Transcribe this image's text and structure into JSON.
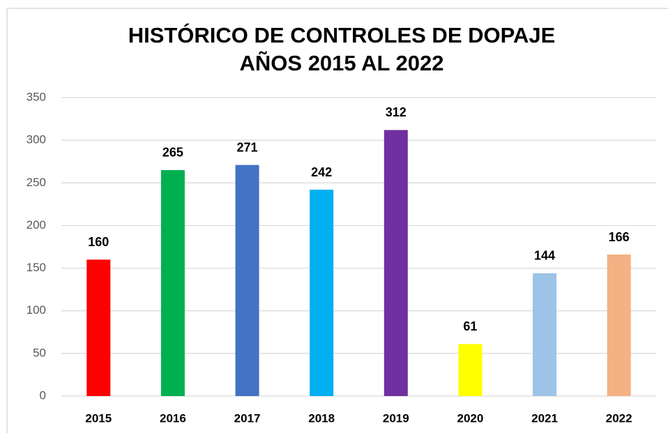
{
  "chart_data": {
    "type": "bar",
    "title": [
      "HISTÓRICO DE CONTROLES DE DOPAJE",
      "AÑOS 2015 AL 2022"
    ],
    "categories": [
      "2015",
      "2016",
      "2017",
      "2018",
      "2019",
      "2020",
      "2021",
      "2022"
    ],
    "values": [
      160,
      265,
      271,
      242,
      312,
      61,
      144,
      166
    ],
    "colors": [
      "#ff0000",
      "#00b050",
      "#4472c4",
      "#00b0f0",
      "#7030a0",
      "#ffff00",
      "#9dc3e6",
      "#f4b183"
    ],
    "ylim": [
      0,
      350
    ],
    "yticks": [
      0,
      50,
      100,
      150,
      200,
      250,
      300,
      350
    ],
    "grid": true
  }
}
